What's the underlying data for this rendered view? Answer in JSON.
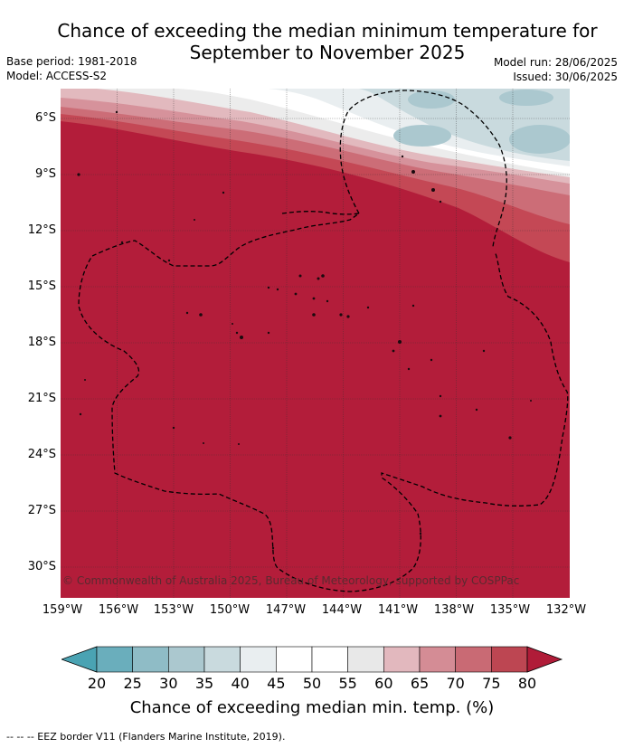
{
  "title_line1": "Chance of exceeding the median minimum temperature for",
  "title_line2": "September to November 2025",
  "base_period": "Base period: 1981-2018",
  "model": "Model: ACCESS-S2",
  "model_run": "Model run: 28/06/2025",
  "issued": "Issued: 30/06/2025",
  "copyright": "© Commonwealth of Australia 2025, Bureau of Meteorology, supported by COSPPac",
  "lat_labels": [
    "6°S",
    "9°S",
    "12°S",
    "15°S",
    "18°S",
    "21°S",
    "24°S",
    "27°S",
    "30°S"
  ],
  "lon_labels": [
    "159°W",
    "156°W",
    "153°W",
    "150°W",
    "147°W",
    "144°W",
    "141°W",
    "138°W",
    "135°W",
    "132°W"
  ],
  "colorbar": {
    "ticks": [
      "20",
      "25",
      "30",
      "35",
      "40",
      "45",
      "50",
      "55",
      "60",
      "65",
      "70",
      "75",
      "80"
    ],
    "colors": [
      "#6aaebc",
      "#8fbcc6",
      "#abc8cf",
      "#c9dade",
      "#e9eef0",
      "#ffffff",
      "#ffffff",
      "#e8e8e8",
      "#e2b8be",
      "#d48c95",
      "#c96a74",
      "#bd4652"
    ],
    "low_color": "#4aa3b3",
    "high_color": "#b01c38",
    "title": "Chance of exceeding median min. temp. (%)"
  },
  "legend_footer": "--  --  -- EEZ border V11 (Flanders Marine Institute, 2019).",
  "colors": {
    "dominant": "#b31d3a"
  }
}
